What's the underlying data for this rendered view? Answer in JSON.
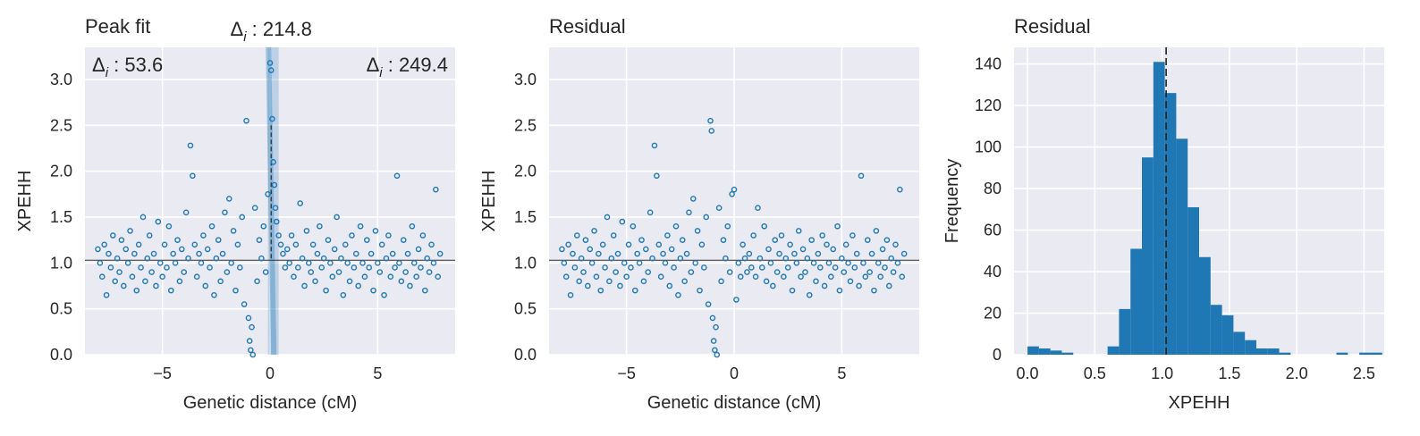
{
  "chart_data": [
    {
      "type": "scatter",
      "title": "Peak fit",
      "xlabel": "Genetic distance (cM)",
      "ylabel": "XPEHH",
      "xlim": [
        -8.6,
        8.6
      ],
      "ylim": [
        0,
        3.35
      ],
      "xticks": [
        -5,
        0,
        5
      ],
      "xtick_labels": [
        "−5",
        "0",
        "5"
      ],
      "yticks": [
        0.0,
        0.5,
        1.0,
        1.5,
        2.0,
        2.5,
        3.0
      ],
      "ytick_labels": [
        "0.0",
        "0.5",
        "1.0",
        "1.5",
        "2.0",
        "2.5",
        "3.0"
      ],
      "annotations": {
        "left": "53.6",
        "center": "214.8",
        "right": "249.4"
      },
      "annotation_prefix": "Δ",
      "annotation_sub": "i",
      "baseline": 1.03,
      "peak_x": 0.05,
      "peak_top": 2.5,
      "band": [
        -0.1,
        0.4
      ],
      "color": "#1f77b4",
      "points": [
        [
          -8,
          1.15
        ],
        [
          -7.9,
          1.0
        ],
        [
          -7.8,
          0.85
        ],
        [
          -7.7,
          1.2
        ],
        [
          -7.6,
          0.65
        ],
        [
          -7.5,
          1.1
        ],
        [
          -7.4,
          0.95
        ],
        [
          -7.3,
          1.3
        ],
        [
          -7.2,
          0.8
        ],
        [
          -7.1,
          1.05
        ],
        [
          -7.0,
          0.9
        ],
        [
          -6.9,
          1.25
        ],
        [
          -6.8,
          0.75
        ],
        [
          -6.7,
          1.15
        ],
        [
          -6.6,
          1.0
        ],
        [
          -6.5,
          1.35
        ],
        [
          -6.4,
          0.85
        ],
        [
          -6.3,
          1.1
        ],
        [
          -6.2,
          0.7
        ],
        [
          -6.1,
          1.2
        ],
        [
          -6.0,
          0.95
        ],
        [
          -5.9,
          1.5
        ],
        [
          -5.8,
          0.8
        ],
        [
          -5.7,
          1.05
        ],
        [
          -5.6,
          1.3
        ],
        [
          -5.5,
          0.9
        ],
        [
          -5.4,
          1.1
        ],
        [
          -5.3,
          0.75
        ],
        [
          -5.2,
          1.45
        ],
        [
          -5.1,
          1.0
        ],
        [
          -5.0,
          0.85
        ],
        [
          -4.9,
          1.2
        ],
        [
          -4.8,
          0.95
        ],
        [
          -4.7,
          1.4
        ],
        [
          -4.6,
          0.7
        ],
        [
          -4.5,
          1.1
        ],
        [
          -4.4,
          1.0
        ],
        [
          -4.3,
          1.25
        ],
        [
          -4.2,
          0.8
        ],
        [
          -4.1,
          1.15
        ],
        [
          -4.0,
          0.9
        ],
        [
          -3.9,
          1.55
        ],
        [
          -3.8,
          1.05
        ],
        [
          -3.7,
          2.28
        ],
        [
          -3.6,
          1.95
        ],
        [
          -3.5,
          1.2
        ],
        [
          -3.4,
          0.85
        ],
        [
          -3.3,
          1.1
        ],
        [
          -3.2,
          1.0
        ],
        [
          -3.1,
          1.3
        ],
        [
          -3.0,
          0.75
        ],
        [
          -2.9,
          1.15
        ],
        [
          -2.8,
          0.95
        ],
        [
          -2.7,
          1.4
        ],
        [
          -2.6,
          0.65
        ],
        [
          -2.5,
          1.05
        ],
        [
          -2.4,
          1.25
        ],
        [
          -2.3,
          0.8
        ],
        [
          -2.2,
          1.1
        ],
        [
          -2.1,
          1.55
        ],
        [
          -2.0,
          0.9
        ],
        [
          -1.9,
          1.7
        ],
        [
          -1.8,
          1.0
        ],
        [
          -1.7,
          1.35
        ],
        [
          -1.6,
          0.7
        ],
        [
          -1.5,
          1.2
        ],
        [
          -1.4,
          0.95
        ],
        [
          -1.3,
          1.5
        ],
        [
          -1.2,
          0.55
        ],
        [
          -1.1,
          2.55
        ],
        [
          -1.0,
          0.4
        ],
        [
          -0.95,
          0.15
        ],
        [
          -0.9,
          0.05
        ],
        [
          -0.85,
          0.3
        ],
        [
          -0.8,
          0.0
        ],
        [
          -0.7,
          1.6
        ],
        [
          -0.6,
          0.8
        ],
        [
          -0.5,
          1.25
        ],
        [
          -0.4,
          1.05
        ],
        [
          -0.3,
          1.4
        ],
        [
          -0.2,
          0.9
        ],
        [
          -0.1,
          1.75
        ],
        [
          0.0,
          3.18
        ],
        [
          0.05,
          3.1
        ],
        [
          0.1,
          2.57
        ],
        [
          0.15,
          2.1
        ],
        [
          0.2,
          1.85
        ],
        [
          0.25,
          1.6
        ],
        [
          0.3,
          1.45
        ],
        [
          0.4,
          1.3
        ],
        [
          0.5,
          1.2
        ],
        [
          0.6,
          1.1
        ],
        [
          0.7,
          0.95
        ],
        [
          0.8,
          1.15
        ],
        [
          0.9,
          1.0
        ],
        [
          1.0,
          1.3
        ],
        [
          1.1,
          0.85
        ],
        [
          1.2,
          1.2
        ],
        [
          1.3,
          0.95
        ],
        [
          1.4,
          1.65
        ],
        [
          1.5,
          1.05
        ],
        [
          1.6,
          0.75
        ],
        [
          1.7,
          1.35
        ],
        [
          1.8,
          1.0
        ],
        [
          1.9,
          0.9
        ],
        [
          2.0,
          1.2
        ],
        [
          2.1,
          0.8
        ],
        [
          2.2,
          1.1
        ],
        [
          2.3,
          1.4
        ],
        [
          2.4,
          0.95
        ],
        [
          2.5,
          1.05
        ],
        [
          2.6,
          0.7
        ],
        [
          2.7,
          1.25
        ],
        [
          2.8,
          1.0
        ],
        [
          2.9,
          0.85
        ],
        [
          3.0,
          1.15
        ],
        [
          3.1,
          1.5
        ],
        [
          3.2,
          0.9
        ],
        [
          3.3,
          1.05
        ],
        [
          3.4,
          0.65
        ],
        [
          3.5,
          1.2
        ],
        [
          3.6,
          1.0
        ],
        [
          3.7,
          0.8
        ],
        [
          3.8,
          1.3
        ],
        [
          3.9,
          0.95
        ],
        [
          4.0,
          1.1
        ],
        [
          4.1,
          0.75
        ],
        [
          4.2,
          1.4
        ],
        [
          4.3,
          1.0
        ],
        [
          4.4,
          0.85
        ],
        [
          4.5,
          1.25
        ],
        [
          4.6,
          0.95
        ],
        [
          4.7,
          1.1
        ],
        [
          4.8,
          0.7
        ],
        [
          4.9,
          1.35
        ],
        [
          5.0,
          1.0
        ],
        [
          5.1,
          0.9
        ],
        [
          5.2,
          1.2
        ],
        [
          5.3,
          0.65
        ],
        [
          5.4,
          1.05
        ],
        [
          5.5,
          1.3
        ],
        [
          5.6,
          0.85
        ],
        [
          5.7,
          1.1
        ],
        [
          5.8,
          0.95
        ],
        [
          5.9,
          1.95
        ],
        [
          6.0,
          1.0
        ],
        [
          6.1,
          0.8
        ],
        [
          6.2,
          1.25
        ],
        [
          6.3,
          0.9
        ],
        [
          6.4,
          1.1
        ],
        [
          6.5,
          0.75
        ],
        [
          6.6,
          1.4
        ],
        [
          6.7,
          1.0
        ],
        [
          6.8,
          0.85
        ],
        [
          6.9,
          1.15
        ],
        [
          7.0,
          0.95
        ],
        [
          7.1,
          1.3
        ],
        [
          7.2,
          0.7
        ],
        [
          7.3,
          1.05
        ],
        [
          7.4,
          0.9
        ],
        [
          7.5,
          1.2
        ],
        [
          7.6,
          1.0
        ],
        [
          7.7,
          1.8
        ],
        [
          7.8,
          0.85
        ],
        [
          7.9,
          1.1
        ]
      ]
    },
    {
      "type": "scatter",
      "title": "Residual",
      "xlabel": "Genetic distance (cM)",
      "ylabel": "XPEHH",
      "xlim": [
        -8.6,
        8.6
      ],
      "ylim": [
        0,
        3.35
      ],
      "xticks": [
        -5,
        0,
        5
      ],
      "xtick_labels": [
        "−5",
        "0",
        "5"
      ],
      "yticks": [
        0.0,
        0.5,
        1.0,
        1.5,
        2.0,
        2.5,
        3.0
      ],
      "ytick_labels": [
        "0.0",
        "0.5",
        "1.0",
        "1.5",
        "2.0",
        "2.5",
        "3.0"
      ],
      "baseline": 1.03,
      "color": "#1f77b4",
      "points": [
        [
          -8,
          1.15
        ],
        [
          -7.9,
          1.0
        ],
        [
          -7.8,
          0.85
        ],
        [
          -7.7,
          1.2
        ],
        [
          -7.6,
          0.65
        ],
        [
          -7.5,
          1.1
        ],
        [
          -7.4,
          0.95
        ],
        [
          -7.3,
          1.3
        ],
        [
          -7.2,
          0.8
        ],
        [
          -7.1,
          1.05
        ],
        [
          -7.0,
          0.9
        ],
        [
          -6.9,
          1.25
        ],
        [
          -6.8,
          0.75
        ],
        [
          -6.7,
          1.15
        ],
        [
          -6.6,
          1.0
        ],
        [
          -6.5,
          1.35
        ],
        [
          -6.4,
          0.85
        ],
        [
          -6.3,
          1.1
        ],
        [
          -6.2,
          0.7
        ],
        [
          -6.1,
          1.2
        ],
        [
          -6.0,
          0.95
        ],
        [
          -5.9,
          1.5
        ],
        [
          -5.8,
          0.8
        ],
        [
          -5.7,
          1.05
        ],
        [
          -5.6,
          1.3
        ],
        [
          -5.5,
          0.9
        ],
        [
          -5.4,
          1.1
        ],
        [
          -5.3,
          0.75
        ],
        [
          -5.2,
          1.45
        ],
        [
          -5.1,
          1.0
        ],
        [
          -5.0,
          0.85
        ],
        [
          -4.9,
          1.2
        ],
        [
          -4.8,
          0.95
        ],
        [
          -4.7,
          1.4
        ],
        [
          -4.6,
          0.7
        ],
        [
          -4.5,
          1.1
        ],
        [
          -4.4,
          1.0
        ],
        [
          -4.3,
          1.25
        ],
        [
          -4.2,
          0.8
        ],
        [
          -4.1,
          1.15
        ],
        [
          -4.0,
          0.9
        ],
        [
          -3.9,
          1.55
        ],
        [
          -3.8,
          1.05
        ],
        [
          -3.7,
          2.28
        ],
        [
          -3.6,
          1.95
        ],
        [
          -3.5,
          1.2
        ],
        [
          -3.4,
          0.85
        ],
        [
          -3.3,
          1.1
        ],
        [
          -3.2,
          1.0
        ],
        [
          -3.1,
          1.3
        ],
        [
          -3.0,
          0.75
        ],
        [
          -2.9,
          1.15
        ],
        [
          -2.8,
          0.95
        ],
        [
          -2.7,
          1.4
        ],
        [
          -2.6,
          0.65
        ],
        [
          -2.5,
          1.05
        ],
        [
          -2.4,
          1.25
        ],
        [
          -2.3,
          0.8
        ],
        [
          -2.2,
          1.1
        ],
        [
          -2.1,
          1.55
        ],
        [
          -2.0,
          0.9
        ],
        [
          -1.9,
          1.7
        ],
        [
          -1.8,
          1.0
        ],
        [
          -1.7,
          1.35
        ],
        [
          -1.6,
          0.7
        ],
        [
          -1.5,
          1.2
        ],
        [
          -1.4,
          0.95
        ],
        [
          -1.3,
          1.5
        ],
        [
          -1.2,
          0.55
        ],
        [
          -1.1,
          2.55
        ],
        [
          -1.05,
          2.44
        ],
        [
          -1.0,
          0.4
        ],
        [
          -0.95,
          0.15
        ],
        [
          -0.9,
          0.05
        ],
        [
          -0.85,
          0.3
        ],
        [
          -0.8,
          0.0
        ],
        [
          -0.7,
          1.6
        ],
        [
          -0.6,
          0.8
        ],
        [
          -0.5,
          1.25
        ],
        [
          -0.4,
          1.05
        ],
        [
          -0.3,
          1.4
        ],
        [
          -0.2,
          0.9
        ],
        [
          -0.1,
          1.75
        ],
        [
          0.0,
          1.8
        ],
        [
          0.1,
          0.6
        ],
        [
          0.2,
          1.0
        ],
        [
          0.3,
          0.85
        ],
        [
          0.4,
          1.2
        ],
        [
          0.5,
          1.05
        ],
        [
          0.6,
          0.9
        ],
        [
          0.7,
          1.1
        ],
        [
          0.8,
          0.95
        ],
        [
          0.9,
          1.3
        ],
        [
          1.0,
          0.85
        ],
        [
          1.1,
          1.6
        ],
        [
          1.2,
          1.05
        ],
        [
          1.3,
          0.95
        ],
        [
          1.4,
          1.4
        ],
        [
          1.5,
          0.8
        ],
        [
          1.6,
          1.15
        ],
        [
          1.7,
          1.0
        ],
        [
          1.8,
          0.75
        ],
        [
          1.9,
          1.25
        ],
        [
          2.0,
          0.9
        ],
        [
          2.1,
          1.1
        ],
        [
          2.2,
          1.3
        ],
        [
          2.3,
          0.85
        ],
        [
          2.4,
          1.05
        ],
        [
          2.5,
          0.95
        ],
        [
          2.6,
          1.2
        ],
        [
          2.7,
          0.7
        ],
        [
          2.8,
          1.1
        ],
        [
          2.9,
          1.0
        ],
        [
          3.0,
          1.35
        ],
        [
          3.1,
          0.85
        ],
        [
          3.2,
          1.15
        ],
        [
          3.3,
          0.9
        ],
        [
          3.4,
          1.05
        ],
        [
          3.5,
          0.65
        ],
        [
          3.6,
          1.25
        ],
        [
          3.7,
          1.0
        ],
        [
          3.8,
          0.8
        ],
        [
          3.9,
          1.1
        ],
        [
          4.0,
          0.95
        ],
        [
          4.1,
          1.3
        ],
        [
          4.2,
          0.75
        ],
        [
          4.3,
          1.2
        ],
        [
          4.4,
          1.0
        ],
        [
          4.5,
          0.85
        ],
        [
          4.6,
          1.15
        ],
        [
          4.7,
          0.95
        ],
        [
          4.8,
          1.4
        ],
        [
          4.9,
          0.7
        ],
        [
          5.0,
          1.05
        ],
        [
          5.1,
          0.9
        ],
        [
          5.2,
          1.2
        ],
        [
          5.3,
          1.0
        ],
        [
          5.4,
          0.8
        ],
        [
          5.5,
          1.3
        ],
        [
          5.6,
          0.95
        ],
        [
          5.7,
          1.1
        ],
        [
          5.8,
          0.75
        ],
        [
          5.9,
          1.95
        ],
        [
          6.0,
          1.0
        ],
        [
          6.1,
          0.85
        ],
        [
          6.2,
          1.25
        ],
        [
          6.3,
          0.9
        ],
        [
          6.4,
          1.1
        ],
        [
          6.5,
          0.7
        ],
        [
          6.6,
          1.35
        ],
        [
          6.7,
          1.0
        ],
        [
          6.8,
          0.85
        ],
        [
          6.9,
          1.15
        ],
        [
          7.0,
          0.95
        ],
        [
          7.1,
          1.25
        ],
        [
          7.2,
          0.75
        ],
        [
          7.3,
          1.05
        ],
        [
          7.4,
          0.9
        ],
        [
          7.5,
          1.2
        ],
        [
          7.6,
          1.0
        ],
        [
          7.7,
          1.8
        ],
        [
          7.8,
          0.85
        ],
        [
          7.9,
          1.1
        ]
      ]
    },
    {
      "type": "bar",
      "title": "Residual",
      "xlabel": "XPEHH",
      "ylabel": "Frequency",
      "xlim": [
        -0.1,
        2.65
      ],
      "ylim": [
        0,
        148
      ],
      "xticks": [
        0.0,
        0.5,
        1.0,
        1.5,
        2.0,
        2.5
      ],
      "xtick_labels": [
        "0.0",
        "0.5",
        "1.0",
        "1.5",
        "2.0",
        "2.5"
      ],
      "yticks": [
        0,
        20,
        40,
        60,
        80,
        100,
        120,
        140
      ],
      "ytick_labels": [
        "0",
        "20",
        "40",
        "60",
        "80",
        "100",
        "120",
        "140"
      ],
      "bin_start": 0.0,
      "bin_width": 0.085,
      "values": [
        4,
        3,
        2,
        1,
        0,
        0,
        0,
        4,
        22,
        51,
        95,
        141,
        126,
        104,
        71,
        47,
        24,
        19,
        11,
        7,
        3,
        3,
        1,
        0,
        0,
        0,
        0,
        1,
        0,
        1,
        1
      ],
      "mean_line": 1.03,
      "color": "#1f77b4"
    }
  ]
}
